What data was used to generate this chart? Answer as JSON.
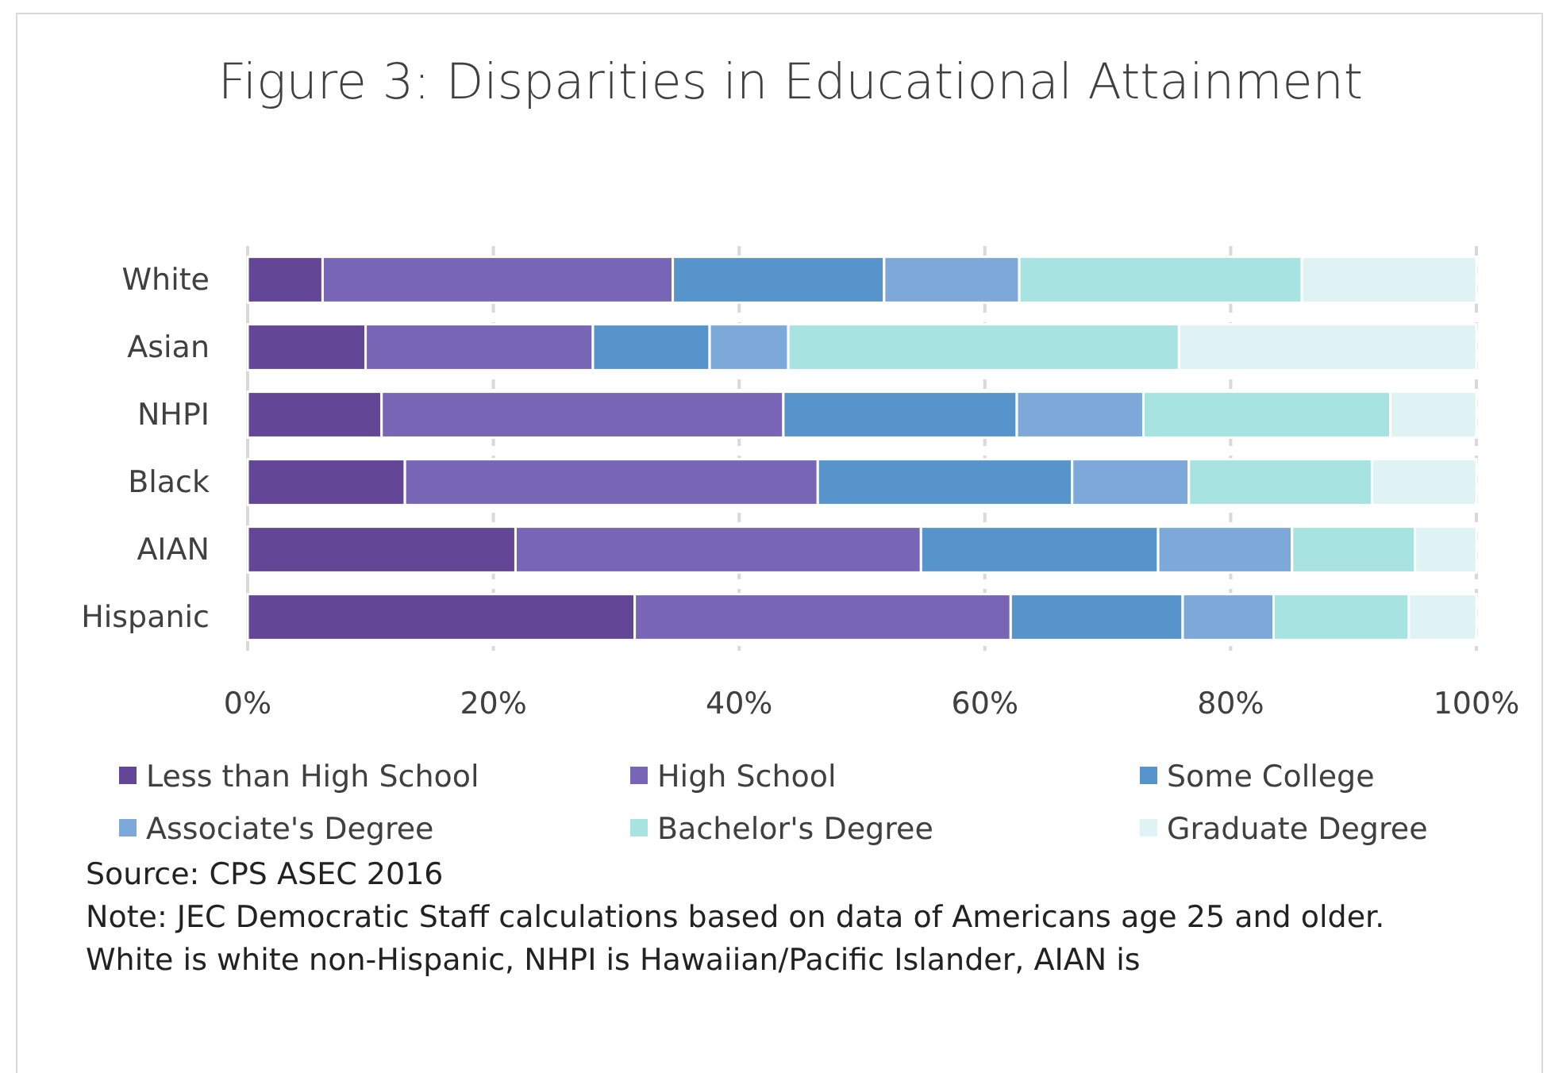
{
  "chart_data": {
    "type": "bar",
    "orientation": "horizontal",
    "stacked": true,
    "title": "Figure 3: Disparities in Educational Attainment",
    "categories": [
      "White",
      "Asian",
      "NHPI",
      "Black",
      "AIAN",
      "Hispanic"
    ],
    "series": [
      {
        "name": "Less than High School",
        "color": "#634696",
        "values": [
          6.1,
          9.6,
          10.9,
          12.8,
          21.8,
          31.5
        ]
      },
      {
        "name": "High School",
        "color": "#7865b5",
        "values": [
          28.5,
          18.5,
          32.7,
          33.6,
          33.0,
          30.6
        ]
      },
      {
        "name": "Some College",
        "color": "#5794cb",
        "values": [
          17.2,
          9.5,
          19.0,
          20.7,
          19.3,
          14.0
        ]
      },
      {
        "name": "Associate's Degree",
        "color": "#7ca9d9",
        "values": [
          11.0,
          6.4,
          10.3,
          9.5,
          10.9,
          7.4
        ]
      },
      {
        "name": "Bachelor's Degree",
        "color": "#a6e3e1",
        "values": [
          23.0,
          31.8,
          20.1,
          14.9,
          10.0,
          11.0
        ]
      },
      {
        "name": "Graduate Degree",
        "color": "#dff3f4",
        "values": [
          14.2,
          24.2,
          7.0,
          8.5,
          5.0,
          5.5
        ]
      }
    ],
    "xlim": [
      0,
      100
    ],
    "xticks": [
      {
        "value": 0,
        "label": "0%"
      },
      {
        "value": 20,
        "label": "20%"
      },
      {
        "value": 40,
        "label": "40%"
      },
      {
        "value": 60,
        "label": "60%"
      },
      {
        "value": 80,
        "label": "80%"
      },
      {
        "value": 100,
        "label": "100%"
      }
    ],
    "grid": "x",
    "legend": "bottom",
    "annotations": [
      "Source: CPS ASEC 2016",
      "Note: JEC Democratic Staff calculations based on data of Americans age 25 and older. White is white non-Hispanic, NHPI is Hawaiian/Pacific Islander, AIAN is"
    ]
  }
}
